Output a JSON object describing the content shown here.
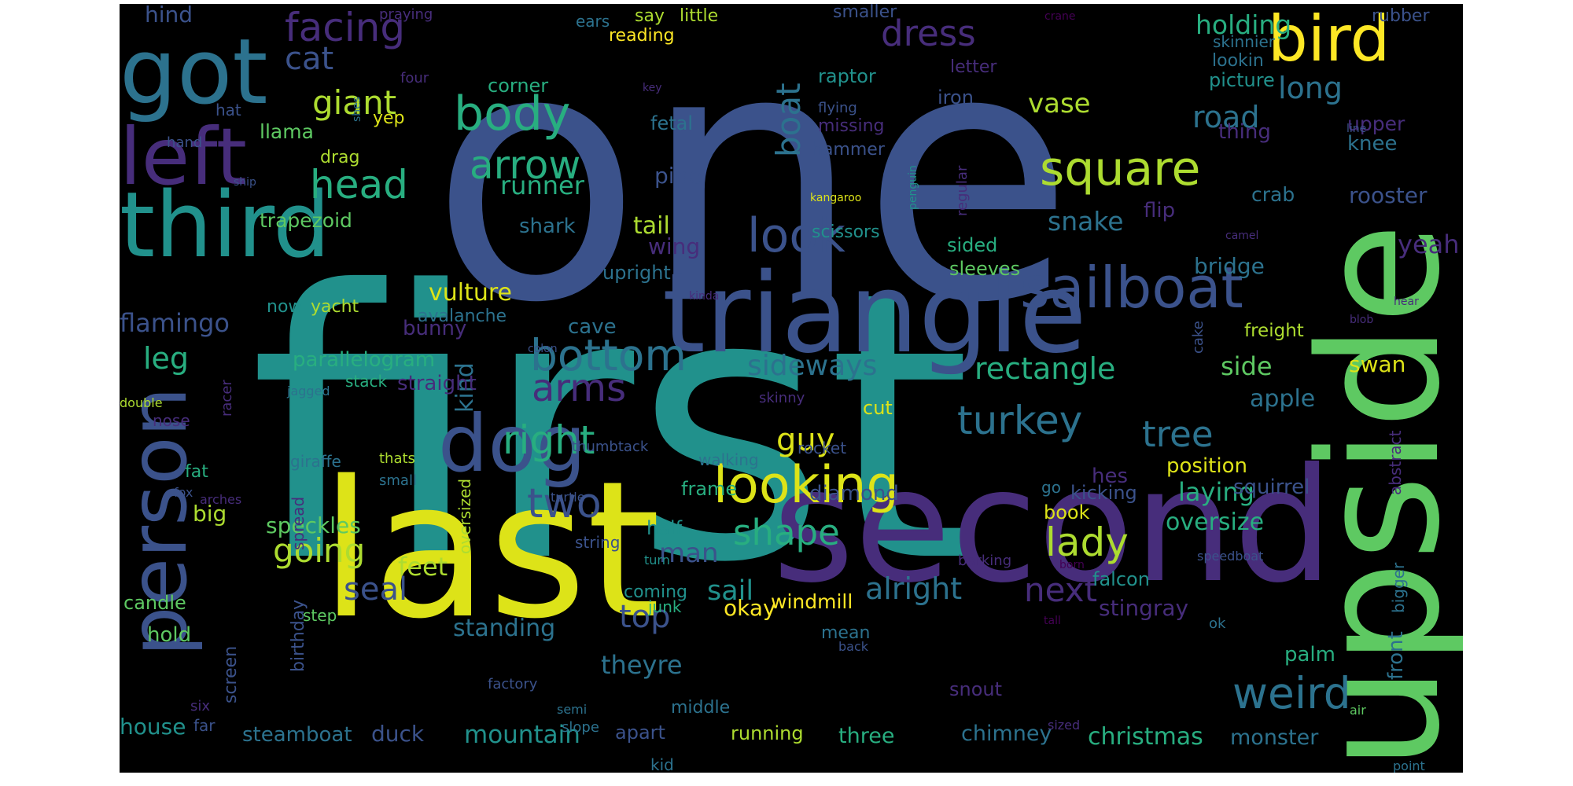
{
  "cloud": {
    "background": "#000000",
    "palette": {
      "p1": "#472d7b",
      "p2": "#3b528b",
      "p3": "#2c728e",
      "p4": "#21918c",
      "p5": "#28ae80",
      "p6": "#5ec962",
      "p7": "#addc30",
      "p8": "#dde318",
      "p9": "#fde725",
      "p0": "#440154"
    },
    "words": [
      {
        "id": "one",
        "text": "one",
        "color": "p2"
      },
      {
        "id": "first",
        "text": "first",
        "color": "p4"
      },
      {
        "id": "second",
        "text": "second",
        "color": "p1"
      },
      {
        "id": "upside",
        "text": "upside",
        "color": "p6"
      },
      {
        "id": "last",
        "text": "last",
        "color": "p8"
      },
      {
        "id": "triangle",
        "text": "triangle",
        "color": "p2"
      },
      {
        "id": "third",
        "text": "third",
        "color": "p4"
      },
      {
        "id": "got",
        "text": "got",
        "color": "p3"
      },
      {
        "id": "left",
        "text": "left",
        "color": "p1"
      },
      {
        "id": "bird",
        "text": "bird",
        "color": "p9"
      },
      {
        "id": "person",
        "text": "person",
        "color": "p2"
      },
      {
        "id": "dog",
        "text": "dog",
        "color": "p2"
      },
      {
        "id": "sailboat",
        "text": "sailboat",
        "color": "p2"
      },
      {
        "id": "looking",
        "text": "looking",
        "color": "p8"
      },
      {
        "id": "square",
        "text": "square",
        "color": "p7"
      },
      {
        "id": "body",
        "text": "body",
        "color": "p5"
      },
      {
        "id": "arrow",
        "text": "arrow",
        "color": "p5"
      },
      {
        "id": "look",
        "text": "look",
        "color": "p2"
      },
      {
        "id": "bottom",
        "text": "bottom",
        "color": "p3"
      },
      {
        "id": "right",
        "text": "right",
        "color": "p5"
      },
      {
        "id": "turkey",
        "text": "turkey",
        "color": "p3"
      },
      {
        "id": "weird",
        "text": "weird",
        "color": "p3"
      },
      {
        "id": "two",
        "text": "two",
        "color": "p2"
      },
      {
        "id": "head",
        "text": "head",
        "color": "p5"
      },
      {
        "id": "dress",
        "text": "dress",
        "color": "p1"
      },
      {
        "id": "facing",
        "text": "facing",
        "color": "p1"
      },
      {
        "id": "shape",
        "text": "shape",
        "color": "p5"
      },
      {
        "id": "lady",
        "text": "lady",
        "color": "p7"
      },
      {
        "id": "arms",
        "text": "arms",
        "color": "p1"
      },
      {
        "id": "giant",
        "text": "giant",
        "color": "p7"
      },
      {
        "id": "cat",
        "text": "cat",
        "color": "p2"
      },
      {
        "id": "boat",
        "text": "boat",
        "color": "p3"
      },
      {
        "id": "tree",
        "text": "tree",
        "color": "p3"
      },
      {
        "id": "guy",
        "text": "guy",
        "color": "p8"
      },
      {
        "id": "going",
        "text": "going",
        "color": "p7"
      },
      {
        "id": "rectangle",
        "text": "rectangle",
        "color": "p5"
      },
      {
        "id": "next",
        "text": "next",
        "color": "p1"
      },
      {
        "id": "seal",
        "text": "seal",
        "color": "p2"
      },
      {
        "id": "top",
        "text": "top",
        "color": "p2"
      },
      {
        "id": "alright",
        "text": "alright",
        "color": "p3"
      },
      {
        "id": "sideways",
        "text": "sideways",
        "color": "p3"
      },
      {
        "id": "kind",
        "text": "kind",
        "color": "p3"
      },
      {
        "id": "runner",
        "text": "runner",
        "color": "p5"
      },
      {
        "id": "leg",
        "text": "leg",
        "color": "p5"
      },
      {
        "id": "road",
        "text": "road",
        "color": "p3"
      },
      {
        "id": "holding",
        "text": "holding",
        "color": "p5"
      },
      {
        "id": "long",
        "text": "long",
        "color": "p3"
      },
      {
        "id": "vase",
        "text": "vase",
        "color": "p7"
      },
      {
        "id": "snake",
        "text": "snake",
        "color": "p3"
      },
      {
        "id": "flamingo",
        "text": "flamingo",
        "color": "p2"
      },
      {
        "id": "vulture",
        "text": "vulture",
        "color": "p8"
      },
      {
        "id": "sail",
        "text": "sail",
        "color": "p4"
      },
      {
        "id": "man",
        "text": "man",
        "color": "p2"
      },
      {
        "id": "christmas",
        "text": "christmas",
        "color": "p5"
      },
      {
        "id": "mountain",
        "text": "mountain",
        "color": "p4"
      },
      {
        "id": "steamboat",
        "text": "steamboat",
        "color": "p3"
      },
      {
        "id": "house",
        "text": "house",
        "color": "p4"
      },
      {
        "id": "duck",
        "text": "duck",
        "color": "p2"
      },
      {
        "id": "chimney",
        "text": "chimney",
        "color": "p3"
      },
      {
        "id": "monster",
        "text": "monster",
        "color": "p3"
      },
      {
        "id": "three",
        "text": "three",
        "color": "p5"
      },
      {
        "id": "running",
        "text": "running",
        "color": "p7"
      },
      {
        "id": "apart",
        "text": "apart",
        "color": "p2"
      },
      {
        "id": "theyre",
        "text": "theyre",
        "color": "p3"
      },
      {
        "id": "standing",
        "text": "standing",
        "color": "p3"
      },
      {
        "id": "feet",
        "text": "feet",
        "color": "p7"
      },
      {
        "id": "speckles",
        "text": "speckles",
        "color": "p6"
      },
      {
        "id": "big",
        "text": "big",
        "color": "p7"
      },
      {
        "id": "okay",
        "text": "okay",
        "color": "p9"
      },
      {
        "id": "windmill",
        "text": "windmill",
        "color": "p9"
      },
      {
        "id": "stingray",
        "text": "stingray",
        "color": "p1"
      },
      {
        "id": "palm",
        "text": "palm",
        "color": "p5"
      },
      {
        "id": "swan",
        "text": "swan",
        "color": "p8"
      },
      {
        "id": "apple",
        "text": "apple",
        "color": "p3"
      },
      {
        "id": "side",
        "text": "side",
        "color": "p6"
      },
      {
        "id": "position",
        "text": "position",
        "color": "p8"
      },
      {
        "id": "laying",
        "text": "laying",
        "color": "p5"
      },
      {
        "id": "oversize",
        "text": "oversize",
        "color": "p5"
      },
      {
        "id": "squirrel",
        "text": "squirrel",
        "color": "p2"
      },
      {
        "id": "yeah",
        "text": "yeah",
        "color": "p1"
      },
      {
        "id": "bridge",
        "text": "bridge",
        "color": "p3"
      },
      {
        "id": "crab",
        "text": "crab",
        "color": "p3"
      },
      {
        "id": "rooster",
        "text": "rooster",
        "color": "p2"
      },
      {
        "id": "knee",
        "text": "knee",
        "color": "p3"
      },
      {
        "id": "upper",
        "text": "upper",
        "color": "p1"
      },
      {
        "id": "thing",
        "text": "thing",
        "color": "p1"
      },
      {
        "id": "picture",
        "text": "picture",
        "color": "p4"
      },
      {
        "id": "lookin",
        "text": "lookin",
        "color": "p3"
      },
      {
        "id": "skinnier",
        "text": "skinnier",
        "color": "p3"
      },
      {
        "id": "rubber",
        "text": "rubber",
        "color": "p2"
      },
      {
        "id": "hes",
        "text": "hes",
        "color": "p1"
      },
      {
        "id": "kicking",
        "text": "kicking",
        "color": "p2"
      },
      {
        "id": "book",
        "text": "book",
        "color": "p8"
      },
      {
        "id": "tail",
        "text": "tail",
        "color": "p7"
      },
      {
        "id": "wing",
        "text": "wing",
        "color": "p1"
      },
      {
        "id": "shark",
        "text": "shark",
        "color": "p3"
      },
      {
        "id": "pipe",
        "text": "pipe",
        "color": "p2"
      },
      {
        "id": "upright",
        "text": "upright",
        "color": "p3"
      },
      {
        "id": "cave",
        "text": "cave",
        "color": "p3"
      },
      {
        "id": "bunny",
        "text": "bunny",
        "color": "p1"
      },
      {
        "id": "parallelogram",
        "text": "parallelogram",
        "color": "p5"
      },
      {
        "id": "straight",
        "text": "straight",
        "color": "p1"
      },
      {
        "id": "trapezoid",
        "text": "trapezoid",
        "color": "p6"
      },
      {
        "id": "llama",
        "text": "llama",
        "color": "p6"
      },
      {
        "id": "yep",
        "text": "yep",
        "color": "p8"
      },
      {
        "id": "drag",
        "text": "drag",
        "color": "p7"
      },
      {
        "id": "hind",
        "text": "hind",
        "color": "p2"
      },
      {
        "id": "iron",
        "text": "iron",
        "color": "p2"
      },
      {
        "id": "raptor",
        "text": "raptor",
        "color": "p4"
      },
      {
        "id": "fetal",
        "text": "fetal",
        "color": "p3"
      },
      {
        "id": "corner",
        "text": "corner",
        "color": "p5"
      },
      {
        "id": "reading",
        "text": "reading",
        "color": "p9"
      },
      {
        "id": "say",
        "text": "say",
        "color": "p7"
      },
      {
        "id": "little",
        "text": "little",
        "color": "p7"
      },
      {
        "id": "smaller",
        "text": "smaller",
        "color": "p2"
      },
      {
        "id": "ears",
        "text": "ears",
        "color": "p3"
      },
      {
        "id": "letter",
        "text": "letter",
        "color": "p1"
      },
      {
        "id": "hammer",
        "text": "hammer",
        "color": "p2"
      },
      {
        "id": "missing",
        "text": "missing",
        "color": "p1"
      },
      {
        "id": "scissors",
        "text": "scissors",
        "color": "p4"
      },
      {
        "id": "sided",
        "text": "sided",
        "color": "p5"
      },
      {
        "id": "sleeves",
        "text": "sleeves",
        "color": "p6"
      },
      {
        "id": "flip",
        "text": "flip",
        "color": "p1"
      },
      {
        "id": "frame",
        "text": "frame",
        "color": "p5"
      },
      {
        "id": "diamond",
        "text": "diamond",
        "color": "p2"
      },
      {
        "id": "half",
        "text": "half",
        "color": "p4"
      },
      {
        "id": "coming",
        "text": "coming",
        "color": "p4"
      },
      {
        "id": "cut",
        "text": "cut",
        "color": "p8"
      },
      {
        "id": "walking",
        "text": "walking",
        "color": "p3"
      },
      {
        "id": "rocket",
        "text": "rocket",
        "color": "p2"
      },
      {
        "id": "mean",
        "text": "mean",
        "color": "p3"
      },
      {
        "id": "middle",
        "text": "middle",
        "color": "p3"
      },
      {
        "id": "snout",
        "text": "snout",
        "color": "p1"
      },
      {
        "id": "freight",
        "text": "freight",
        "color": "p7"
      },
      {
        "id": "cake",
        "text": "cake",
        "color": "p2"
      },
      {
        "id": "abstract",
        "text": "abstract",
        "color": "p1"
      },
      {
        "id": "front",
        "text": "front",
        "color": "p3"
      },
      {
        "id": "bigger",
        "text": "bigger",
        "color": "p3"
      },
      {
        "id": "falcon",
        "text": "falcon",
        "color": "p4"
      },
      {
        "id": "candle",
        "text": "candle",
        "color": "p6"
      },
      {
        "id": "hold",
        "text": "hold",
        "color": "p6"
      },
      {
        "id": "screen",
        "text": "screen",
        "color": "p2"
      },
      {
        "id": "birthday",
        "text": "birthday",
        "color": "p2"
      },
      {
        "id": "spread",
        "text": "spread",
        "color": "p1"
      },
      {
        "id": "oversized",
        "text": "oversized",
        "color": "p7"
      },
      {
        "id": "giraffe",
        "text": "giraffe",
        "color": "p3"
      },
      {
        "id": "thats",
        "text": "thats",
        "color": "p7"
      },
      {
        "id": "small",
        "text": "small",
        "color": "p3"
      },
      {
        "id": "thumbtack",
        "text": "thumbtack",
        "color": "p2"
      },
      {
        "id": "fat",
        "text": "fat",
        "color": "p5"
      },
      {
        "id": "nose",
        "text": "nose",
        "color": "p1"
      },
      {
        "id": "double",
        "text": "double",
        "color": "p7"
      },
      {
        "id": "racer",
        "text": "racer",
        "color": "p1"
      },
      {
        "id": "jagged",
        "text": "jagged",
        "color": "p3"
      },
      {
        "id": "stack",
        "text": "stack",
        "color": "p5"
      },
      {
        "id": "skinny",
        "text": "skinny",
        "color": "p1"
      },
      {
        "id": "now",
        "text": "now",
        "color": "p4"
      },
      {
        "id": "yacht",
        "text": "yacht",
        "color": "p7"
      },
      {
        "id": "avalanche",
        "text": "avalanche",
        "color": "p3"
      },
      {
        "id": "colon",
        "text": "colon",
        "color": "p2"
      },
      {
        "id": "fox",
        "text": "fox",
        "color": "p2"
      },
      {
        "id": "arches",
        "text": "arches",
        "color": "p1"
      },
      {
        "id": "turtle",
        "text": "turtle",
        "color": "p2"
      },
      {
        "id": "go",
        "text": "go",
        "color": "p3"
      },
      {
        "id": "string",
        "text": "string",
        "color": "p2"
      },
      {
        "id": "turn",
        "text": "turn",
        "color": "p4"
      },
      {
        "id": "junk",
        "text": "junk",
        "color": "p5"
      },
      {
        "id": "step",
        "text": "step",
        "color": "p6"
      },
      {
        "id": "barking",
        "text": "barking",
        "color": "p1"
      },
      {
        "id": "speedboat",
        "text": "speedboat",
        "color": "p2"
      },
      {
        "id": "born",
        "text": "born",
        "color": "p0"
      },
      {
        "id": "tall",
        "text": "tall",
        "color": "p0"
      },
      {
        "id": "ok",
        "text": "ok",
        "color": "p3"
      },
      {
        "id": "back",
        "text": "back",
        "color": "p2"
      },
      {
        "id": "factory",
        "text": "factory",
        "color": "p2"
      },
      {
        "id": "semi",
        "text": "semi",
        "color": "p3"
      },
      {
        "id": "slope",
        "text": "slope",
        "color": "p3"
      },
      {
        "id": "six",
        "text": "six",
        "color": "p1"
      },
      {
        "id": "far",
        "text": "far",
        "color": "p2"
      },
      {
        "id": "kid",
        "text": "kid",
        "color": "p3"
      },
      {
        "id": "sized",
        "text": "sized",
        "color": "p1"
      },
      {
        "id": "air",
        "text": "air",
        "color": "p6"
      },
      {
        "id": "point",
        "text": "point",
        "color": "p3"
      },
      {
        "id": "hand",
        "text": "hand",
        "color": "p2"
      },
      {
        "id": "hat",
        "text": "hat",
        "color": "p2"
      },
      {
        "id": "four",
        "text": "four",
        "color": "p1"
      },
      {
        "id": "shes",
        "text": "shes",
        "color": "p3"
      },
      {
        "id": "ship",
        "text": "ship",
        "color": "p2"
      },
      {
        "id": "praying",
        "text": "praying",
        "color": "p1"
      },
      {
        "id": "crane",
        "text": "crane",
        "color": "p0"
      },
      {
        "id": "key",
        "text": "key",
        "color": "p1"
      },
      {
        "id": "flying",
        "text": "flying",
        "color": "p2"
      },
      {
        "id": "kangaroo",
        "text": "kangaroo",
        "color": "p8"
      },
      {
        "id": "regular",
        "text": "regular",
        "color": "p1"
      },
      {
        "id": "penguin",
        "text": "penguin",
        "color": "p4"
      },
      {
        "id": "kinda",
        "text": "kinda",
        "color": "p1"
      },
      {
        "id": "camel",
        "text": "camel",
        "color": "p1"
      },
      {
        "id": "line",
        "text": "line",
        "color": "p2"
      },
      {
        "id": "blob",
        "text": "blob",
        "color": "p1"
      },
      {
        "id": "hear",
        "text": "hear",
        "color": "p1"
      }
    ]
  }
}
